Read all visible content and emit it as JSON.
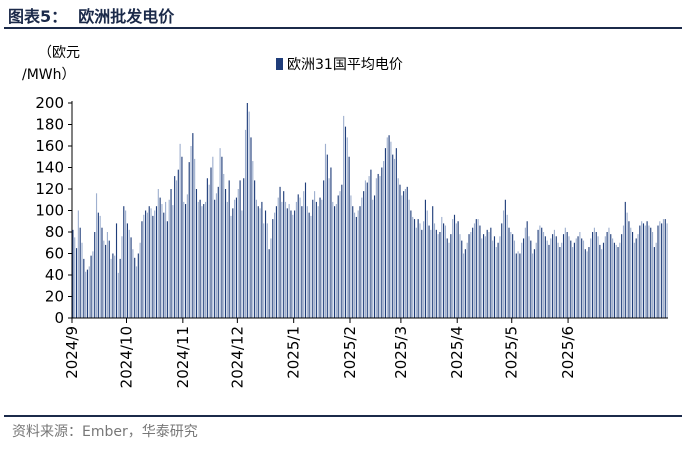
{
  "figure_title": "图表5：  欧洲批发电价",
  "source": "资料来源：Ember，华泰研究",
  "unit_line1": "（欧元",
  "unit_line2": "/MWh）",
  "colors": {
    "bar": "#1f3d7a",
    "bar_light": "#9fb0cf",
    "rule": "#1b2a4a"
  },
  "chart_data": {
    "type": "bar",
    "title": "",
    "ylabel": "（欧元/MWh）",
    "xlabel": "",
    "ylim": [
      0,
      200
    ],
    "yticks": [
      0,
      20,
      40,
      60,
      80,
      100,
      120,
      140,
      160,
      180,
      200
    ],
    "x_start": "2024-09-01",
    "x_ticks": [
      "2024/9",
      "2024/10",
      "2024/11",
      "2024/12",
      "2025/1",
      "2025/2",
      "2025/3",
      "2025/4",
      "2025/5",
      "2025/6"
    ],
    "legend_position": "top-center",
    "series": [
      {
        "name": "欧洲31国平均电价",
        "values": [
          82,
          75,
          65,
          100,
          84,
          70,
          55,
          43,
          45,
          48,
          58,
          62,
          80,
          116,
          98,
          95,
          84,
          72,
          68,
          80,
          72,
          55,
          60,
          58,
          88,
          42,
          55,
          76,
          104,
          100,
          88,
          82,
          75,
          64,
          56,
          48,
          60,
          70,
          90,
          96,
          100,
          98,
          104,
          102,
          95,
          100,
          104,
          120,
          112,
          106,
          98,
          108,
          90,
          110,
          120,
          105,
          132,
          128,
          138,
          162,
          150,
          108,
          106,
          115,
          145,
          160,
          172,
          148,
          120,
          108,
          110,
          104,
          106,
          108,
          130,
          124,
          140,
          150,
          110,
          116,
          122,
          158,
          150,
          134,
          120,
          108,
          128,
          95,
          102,
          110,
          112,
          120,
          128,
          100,
          130,
          175,
          200,
          192,
          168,
          146,
          128,
          110,
          104,
          102,
          108,
          88,
          100,
          88,
          64,
          74,
          92,
          98,
          104,
          112,
          122,
          108,
          118,
          108,
          102,
          106,
          100,
          96,
          100,
          108,
          115,
          112,
          104,
          118,
          126,
          104,
          98,
          95,
          110,
          118,
          108,
          104,
          112,
          110,
          128,
          162,
          152,
          130,
          140,
          108,
          104,
          106,
          114,
          118,
          124,
          188,
          178,
          168,
          150,
          114,
          104,
          98,
          94,
          100,
          104,
          112,
          118,
          128,
          126,
          132,
          138,
          110,
          114,
          130,
          134,
          132,
          140,
          146,
          158,
          168,
          170,
          164,
          152,
          148,
          158,
          130,
          124,
          114,
          118,
          120,
          122,
          110,
          100,
          94,
          92,
          84,
          92,
          88,
          82,
          90,
          110,
          100,
          86,
          82,
          104,
          88,
          82,
          78,
          80,
          94,
          88,
          86,
          74,
          70,
          78,
          92,
          96,
          88,
          90,
          78,
          72,
          60,
          64,
          70,
          78,
          80,
          84,
          88,
          92,
          92,
          86,
          74,
          78,
          76,
          82,
          80,
          84,
          72,
          76,
          66,
          70,
          76,
          88,
          100,
          110,
          96,
          84,
          80,
          78,
          72,
          60,
          62,
          60,
          70,
          74,
          84,
          90,
          76,
          72,
          60,
          64,
          70,
          82,
          86,
          84,
          80,
          76,
          72,
          68,
          74,
          78,
          82,
          76,
          70,
          66,
          70,
          78,
          84,
          80,
          76,
          72,
          66,
          70,
          74,
          76,
          80,
          74,
          72,
          64,
          62,
          66,
          74,
          80,
          84,
          80,
          76,
          68,
          64,
          70,
          76,
          80,
          84,
          78,
          74,
          70,
          68,
          66,
          70,
          78,
          86,
          108,
          98,
          90,
          84,
          80,
          70,
          74,
          78,
          86,
          90,
          88,
          86,
          90,
          86,
          84,
          80,
          66,
          70,
          86,
          90,
          88,
          92,
          92,
          88
        ]
      }
    ]
  }
}
